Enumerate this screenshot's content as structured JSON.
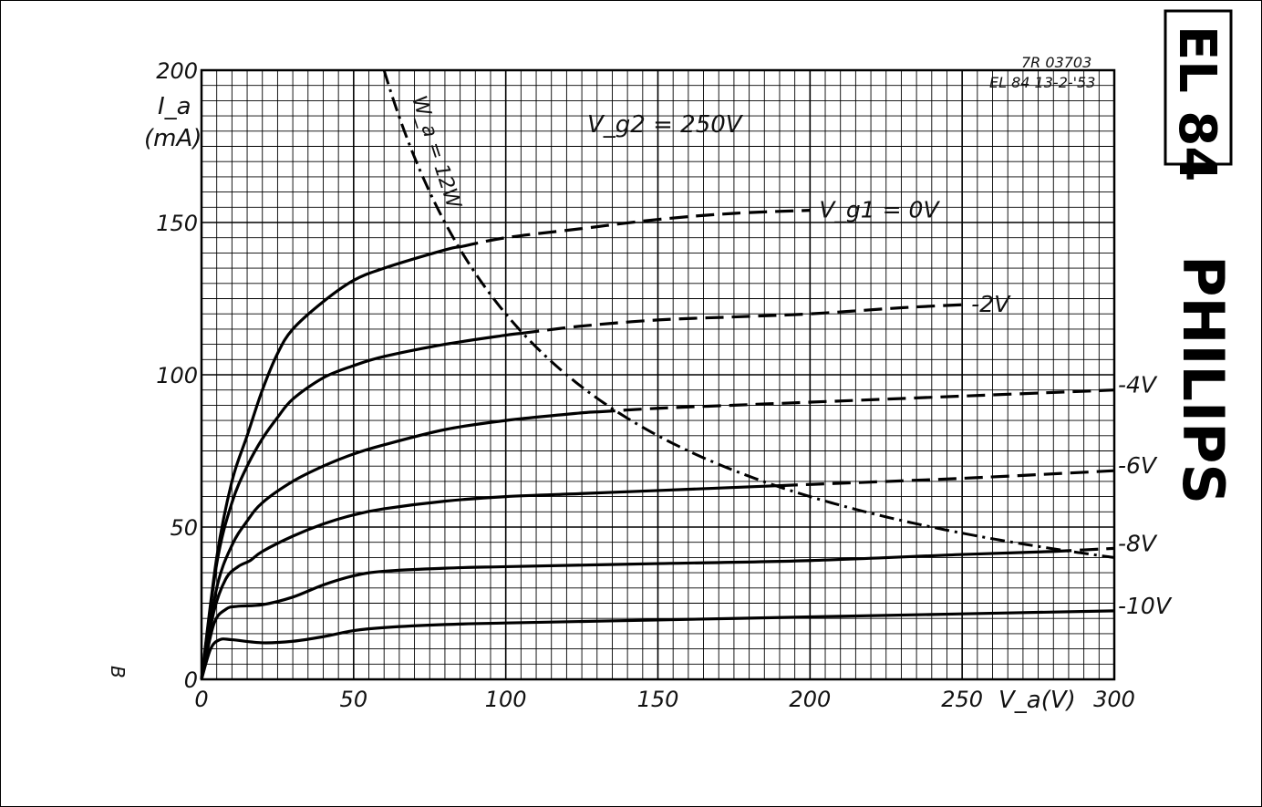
{
  "chart_data": {
    "type": "line",
    "tube": "EL 84",
    "brand": "PHILIPS",
    "ref_code": "7R 03703",
    "ref_date": "EL 84  13-2-'53",
    "condition": "V_g2 = 250V",
    "corner_mark": "B",
    "y_label_1": "I_a",
    "y_label_2": "(mA)",
    "x_label": "V_a(V)",
    "xlim": [
      0,
      300
    ],
    "ylim": [
      0,
      200
    ],
    "x_ticks": [
      0,
      50,
      100,
      150,
      200,
      250,
      300
    ],
    "y_ticks": [
      0,
      50,
      100,
      150,
      200
    ],
    "grid": true,
    "series": [
      {
        "name": "V_g1 = 0V",
        "dash_from": 85,
        "points": [
          [
            0,
            0
          ],
          [
            5,
            40
          ],
          [
            10,
            65
          ],
          [
            15,
            80
          ],
          [
            20,
            95
          ],
          [
            25,
            107
          ],
          [
            30,
            115
          ],
          [
            40,
            124
          ],
          [
            50,
            131
          ],
          [
            60,
            135
          ],
          [
            80,
            141
          ],
          [
            100,
            145
          ],
          [
            125,
            148
          ],
          [
            150,
            151
          ],
          [
            175,
            153
          ],
          [
            200,
            154
          ]
        ]
      },
      {
        "name": "-2V",
        "dash_from": 105,
        "points": [
          [
            0,
            0
          ],
          [
            5,
            38
          ],
          [
            10,
            58
          ],
          [
            15,
            70
          ],
          [
            20,
            79
          ],
          [
            25,
            86
          ],
          [
            30,
            92
          ],
          [
            40,
            99
          ],
          [
            50,
            103
          ],
          [
            60,
            106
          ],
          [
            80,
            110
          ],
          [
            100,
            113
          ],
          [
            125,
            116
          ],
          [
            150,
            118
          ],
          [
            175,
            119
          ],
          [
            200,
            120
          ],
          [
            230,
            122
          ],
          [
            250,
            123
          ]
        ]
      },
      {
        "name": "-4V",
        "dash_from": 130,
        "points": [
          [
            0,
            0
          ],
          [
            5,
            30
          ],
          [
            10,
            44
          ],
          [
            15,
            52
          ],
          [
            20,
            58
          ],
          [
            30,
            65
          ],
          [
            40,
            70
          ],
          [
            50,
            74
          ],
          [
            60,
            77
          ],
          [
            80,
            82
          ],
          [
            100,
            85
          ],
          [
            125,
            87.5
          ],
          [
            150,
            89
          ],
          [
            175,
            90
          ],
          [
            200,
            91
          ],
          [
            250,
            93
          ],
          [
            300,
            95
          ]
        ]
      },
      {
        "name": "-6V",
        "dash_from": 190,
        "points": [
          [
            0,
            0
          ],
          [
            4,
            22
          ],
          [
            8,
            33
          ],
          [
            12,
            37
          ],
          [
            16,
            39
          ],
          [
            20,
            42
          ],
          [
            30,
            47
          ],
          [
            40,
            51
          ],
          [
            50,
            54
          ],
          [
            60,
            56
          ],
          [
            80,
            58.5
          ],
          [
            100,
            60
          ],
          [
            125,
            61
          ],
          [
            150,
            62
          ],
          [
            175,
            63
          ],
          [
            200,
            64
          ],
          [
            250,
            66
          ],
          [
            300,
            68.5
          ]
        ]
      },
      {
        "name": "-8V",
        "dash_from": 280,
        "points": [
          [
            0,
            0
          ],
          [
            4,
            18
          ],
          [
            8,
            23
          ],
          [
            12,
            24
          ],
          [
            20,
            24.5
          ],
          [
            30,
            27
          ],
          [
            40,
            31
          ],
          [
            50,
            34
          ],
          [
            60,
            35.5
          ],
          [
            80,
            36.5
          ],
          [
            100,
            37
          ],
          [
            150,
            38
          ],
          [
            200,
            39
          ],
          [
            250,
            41
          ],
          [
            280,
            42
          ],
          [
            300,
            43
          ]
        ]
      },
      {
        "name": "-10V",
        "dash_from": 400,
        "points": [
          [
            0,
            0
          ],
          [
            3,
            10
          ],
          [
            6,
            13
          ],
          [
            10,
            13
          ],
          [
            20,
            12
          ],
          [
            30,
            12.5
          ],
          [
            40,
            14
          ],
          [
            50,
            16
          ],
          [
            60,
            17
          ],
          [
            80,
            18
          ],
          [
            100,
            18.5
          ],
          [
            150,
            19.5
          ],
          [
            200,
            20.5
          ],
          [
            250,
            21.5
          ],
          [
            300,
            22.5
          ]
        ]
      }
    ],
    "power_limit": {
      "name": "W_a = 12W",
      "watts": 12
    }
  }
}
